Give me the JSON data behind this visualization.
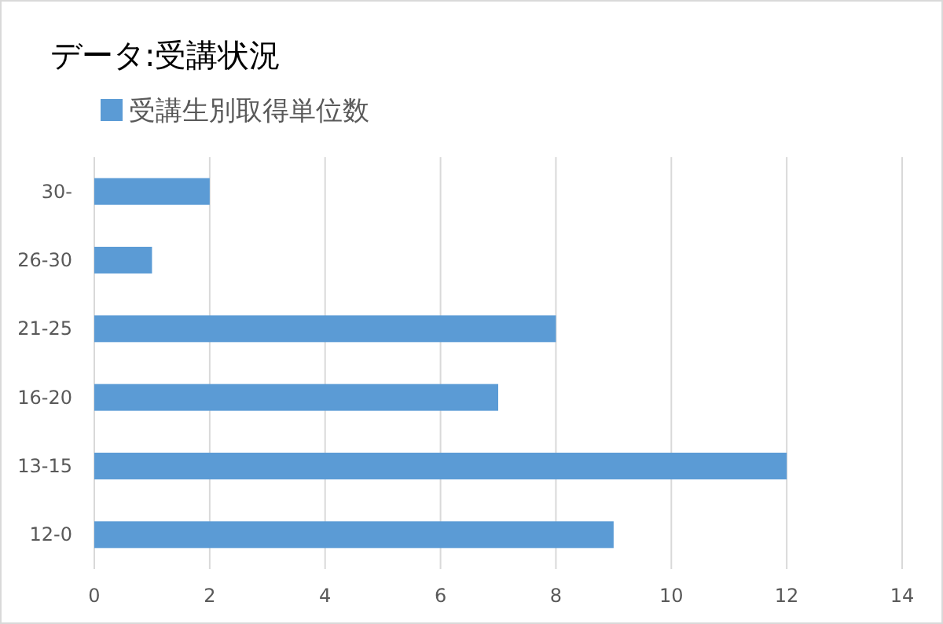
{
  "chart_data": {
    "type": "bar",
    "orientation": "horizontal",
    "title": "データ:受講状況",
    "categories": [
      "30-",
      "26-30",
      "21-25",
      "16-20",
      "13-15",
      "12-0"
    ],
    "series": [
      {
        "name": "受講生別取得単位数",
        "color": "#5b9bd5",
        "values": [
          2,
          1,
          8,
          7,
          12,
          9
        ]
      }
    ],
    "xlim": [
      0,
      14
    ],
    "xticks": [
      0,
      2,
      4,
      6,
      8,
      10,
      12,
      14
    ],
    "grid": "x",
    "legend": "top left"
  }
}
